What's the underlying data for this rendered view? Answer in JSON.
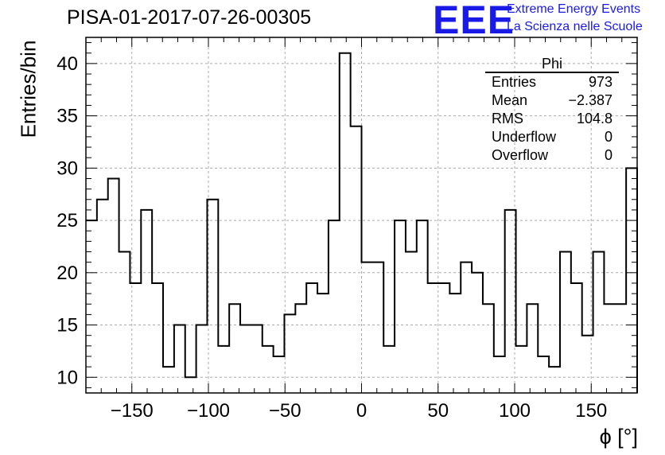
{
  "header": {
    "title": "PISA-01-2017-07-26-00305",
    "logo": "EEE",
    "logo_line1": "Extreme Energy Events",
    "logo_line2": "La Scienza nelle Scuole"
  },
  "stats_box": {
    "title": "Phi",
    "rows": [
      {
        "label": "Entries",
        "value": "973"
      },
      {
        "label": "Mean",
        "value": "−2.387"
      },
      {
        "label": "RMS",
        "value": "104.8"
      },
      {
        "label": "Underflow",
        "value": "0"
      },
      {
        "label": "Overflow",
        "value": "0"
      }
    ]
  },
  "chart_data": {
    "type": "bar",
    "style": "step-histogram",
    "title": "PISA-01-2017-07-26-00305",
    "xlabel": "ϕ [°]",
    "ylabel": "Entries/bin",
    "xlim": [
      -180,
      180
    ],
    "ylim": [
      8.5,
      42.5
    ],
    "bin_width": 7.2,
    "bin_edges_start": -180,
    "values": [
      25,
      27,
      29,
      22,
      19,
      26,
      19,
      11,
      15,
      10,
      15,
      27,
      13,
      17,
      15,
      15,
      13,
      12,
      16,
      17,
      19,
      18,
      25,
      41,
      34,
      21,
      21,
      13,
      25,
      22,
      25,
      19,
      19,
      18,
      21,
      20,
      17,
      12,
      26,
      13,
      17,
      12,
      11,
      22,
      19,
      14,
      22,
      17,
      17,
      30
    ],
    "x_ticks": [
      -150,
      -100,
      -50,
      0,
      50,
      100,
      150
    ],
    "x_tick_labels": [
      "−150",
      "−100",
      "−50",
      "0",
      "50",
      "100",
      "150"
    ],
    "y_ticks": [
      10,
      15,
      20,
      25,
      30,
      35,
      40
    ],
    "y_tick_labels": [
      "10",
      "15",
      "20",
      "25",
      "30",
      "35",
      "40"
    ],
    "grid": true,
    "colors": {
      "line": "#000000",
      "grid": "#aaaaaa",
      "logo": "#1a1ae6"
    }
  }
}
